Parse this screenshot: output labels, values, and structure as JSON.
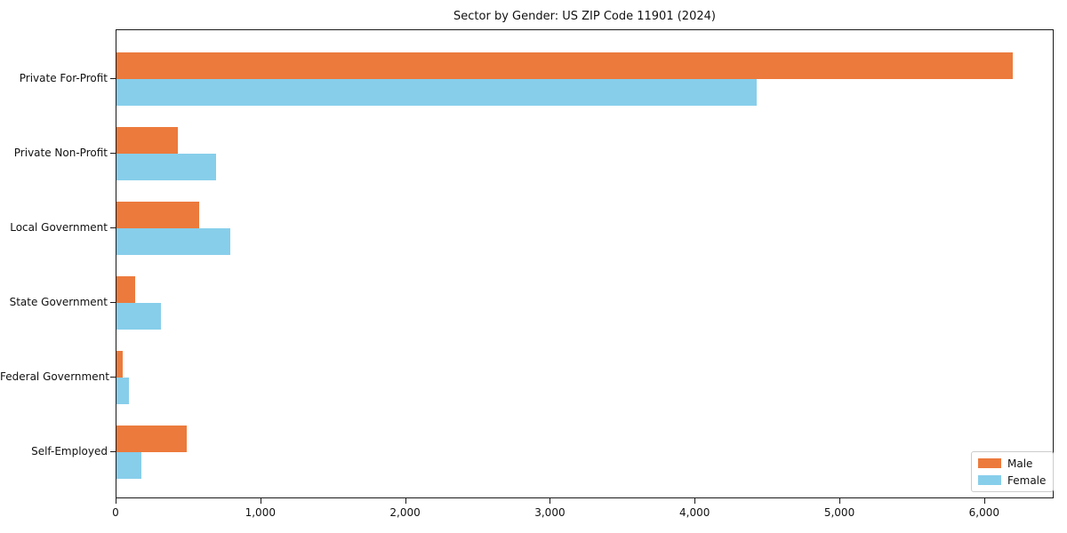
{
  "chart_data": {
    "type": "bar",
    "orientation": "horizontal",
    "title": "Sector by Gender: US ZIP Code 11901 (2024)",
    "categories": [
      "Private For-Profit",
      "Private Non-Profit",
      "Local Government",
      "State Government",
      "Federal Government",
      "Self-Employed"
    ],
    "series": [
      {
        "name": "Male",
        "color": "#EC7A3C",
        "values": [
          6200,
          425,
          570,
          130,
          45,
          485
        ]
      },
      {
        "name": "Female",
        "color": "#87CEEB",
        "values": [
          4430,
          690,
          785,
          305,
          85,
          170
        ]
      }
    ],
    "xlabel": "",
    "ylabel": "",
    "xlim": [
      0,
      6480
    ],
    "xticks": [
      0,
      1000,
      2000,
      3000,
      4000,
      5000,
      6000
    ],
    "xtick_labels": [
      "0",
      "1,000",
      "2,000",
      "3,000",
      "4,000",
      "5,000",
      "6,000"
    ],
    "grid": false,
    "legend_position": "lower right",
    "colors": {
      "axis": "#1a1a1a",
      "background": "#ffffff",
      "legend_border": "#cccccc"
    }
  }
}
